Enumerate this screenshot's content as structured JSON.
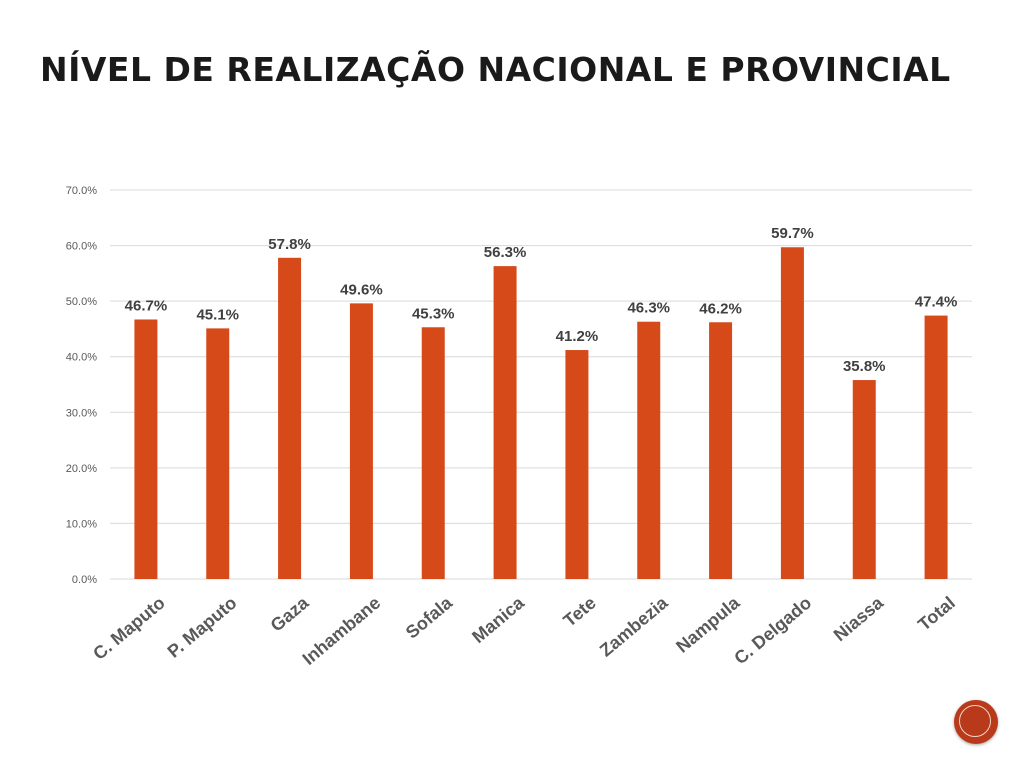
{
  "slide": {
    "title": "NÍVEL DE REALIZAÇÃO NACIONAL E PROVINCIAL"
  },
  "nav": {
    "icon": "circle-next-icon",
    "color": "#b83a1b"
  },
  "chart_data": {
    "type": "bar",
    "title": "",
    "xlabel": "",
    "ylabel": "",
    "categories": [
      "C. Maputo",
      "P. Maputo",
      "Gaza",
      "Inhambane",
      "Sofala",
      "Manica",
      "Tete",
      "Zambezia",
      "Nampula",
      "C. Delgado",
      "Niassa",
      "Total"
    ],
    "values": [
      46.7,
      45.1,
      57.8,
      49.6,
      45.3,
      56.3,
      41.2,
      46.3,
      46.2,
      59.7,
      35.8,
      47.4
    ],
    "data_labels": [
      "46.7%",
      "45.1%",
      "57.8%",
      "49.6%",
      "45.3%",
      "56.3%",
      "41.2%",
      "46.3%",
      "46.2%",
      "59.7%",
      "35.8%",
      "47.4%"
    ],
    "ylim": [
      0,
      70
    ],
    "yticks": [
      0,
      10,
      20,
      30,
      40,
      50,
      60,
      70
    ],
    "ytick_labels": [
      "0.0%",
      "10.0%",
      "20.0%",
      "30.0%",
      "40.0%",
      "50.0%",
      "60.0%",
      "70.0%"
    ],
    "grid": true,
    "legend": "none",
    "bar_color": "#d64a1a"
  }
}
